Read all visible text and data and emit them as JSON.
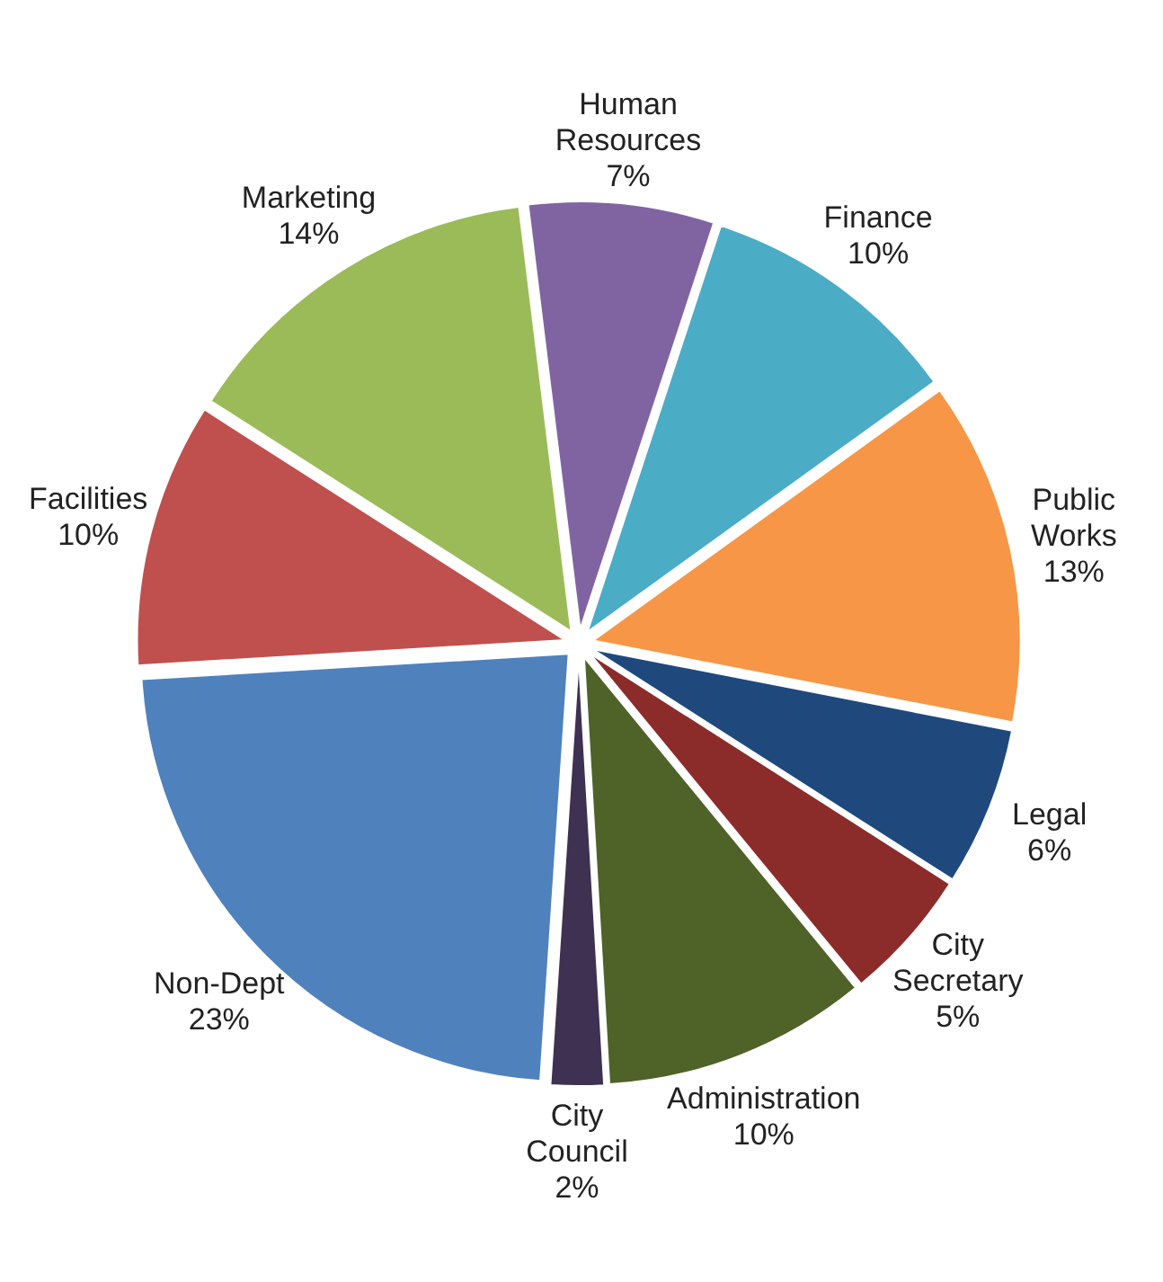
{
  "chart_data": {
    "type": "pie",
    "categories": [
      "Human Resources",
      "Finance",
      "Public Works",
      "Legal",
      "City Secretary",
      "Administration",
      "City Council",
      "Non-Dept",
      "Facilities",
      "Marketing"
    ],
    "values": [
      7,
      10,
      13,
      6,
      5,
      10,
      2,
      23,
      10,
      14
    ],
    "value_labels": [
      "7%",
      "10%",
      "13%",
      "6%",
      "5%",
      "10%",
      "2%",
      "23%",
      "10%",
      "14%"
    ],
    "colors": [
      "#8064a2",
      "#4bacc6",
      "#f79646",
      "#1f497d",
      "#8b2c2a",
      "#4f6228",
      "#3f3151",
      "#4f81bd",
      "#c0504d",
      "#9bbb59"
    ]
  }
}
